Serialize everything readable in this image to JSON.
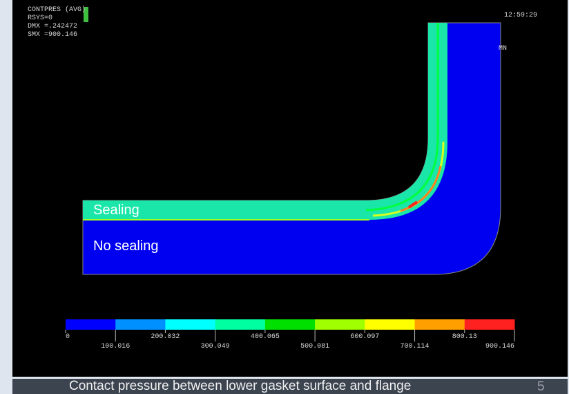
{
  "plot": {
    "header": [
      "CONTPRES (AVG)",
      "RSYS=0",
      "DMX =.242472",
      "SMX =900.146"
    ],
    "time": "12:59:29",
    "marker": "MN"
  },
  "annotations": [
    "Sealing",
    "No sealing"
  ],
  "legend": [
    "0",
    "100.016",
    "200.032",
    "300.049",
    "400.065",
    "500.081",
    "600.097",
    "700.114",
    "800.13",
    "900.146"
  ],
  "caption": "Contact pressure between lower gasket surface and flange",
  "page_number": "5"
}
